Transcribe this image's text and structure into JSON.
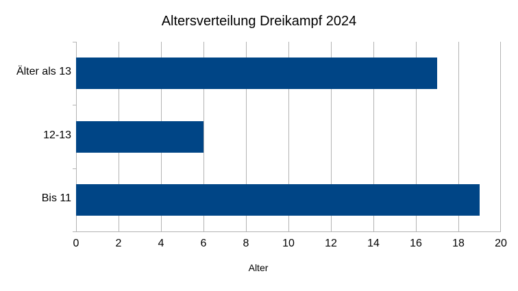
{
  "chart_data": {
    "type": "bar",
    "orientation": "horizontal",
    "title": "Altersverteilung Dreikampf 2024",
    "categories": [
      "Älter als 13",
      "12-13",
      "Bis 11"
    ],
    "values": [
      17,
      6,
      19
    ],
    "xlabel": "Alter",
    "ylabel": "",
    "xlim": [
      0,
      20
    ],
    "xticks": [
      "0",
      "2",
      "4",
      "6",
      "8",
      "10",
      "12",
      "14",
      "16",
      "18",
      "20"
    ],
    "grid": true,
    "legend": null,
    "bar_color": "#004586"
  }
}
